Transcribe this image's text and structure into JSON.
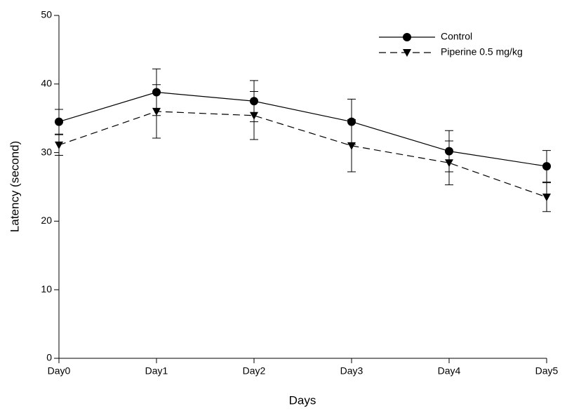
{
  "chart_data": {
    "type": "line",
    "x_label": "Days",
    "y_label": "Latency (second)",
    "categories": [
      "Day0",
      "Day1",
      "Day2",
      "Day3",
      "Day4",
      "Day5"
    ],
    "series": [
      {
        "name": "Control",
        "color": "#000000",
        "line_style": "solid",
        "marker": "circle",
        "values": [
          34.5,
          38.8,
          37.5,
          34.5,
          30.2,
          28.0
        ],
        "errors": [
          1.8,
          3.4,
          3.0,
          3.3,
          3.0,
          2.3
        ]
      },
      {
        "name": "Piperine 0.5 mg/kg",
        "color": "#000000",
        "line_style": "dashed",
        "marker": "triangle-down",
        "values": [
          31.1,
          36.0,
          35.4,
          31.0,
          28.5,
          23.5
        ],
        "errors": [
          1.5,
          3.9,
          3.5,
          3.8,
          3.2,
          2.1
        ]
      }
    ],
    "ylim": [
      0,
      50
    ],
    "yticks": [
      0,
      10,
      20,
      30,
      40,
      50
    ],
    "grid": false,
    "legend": "top-right"
  }
}
